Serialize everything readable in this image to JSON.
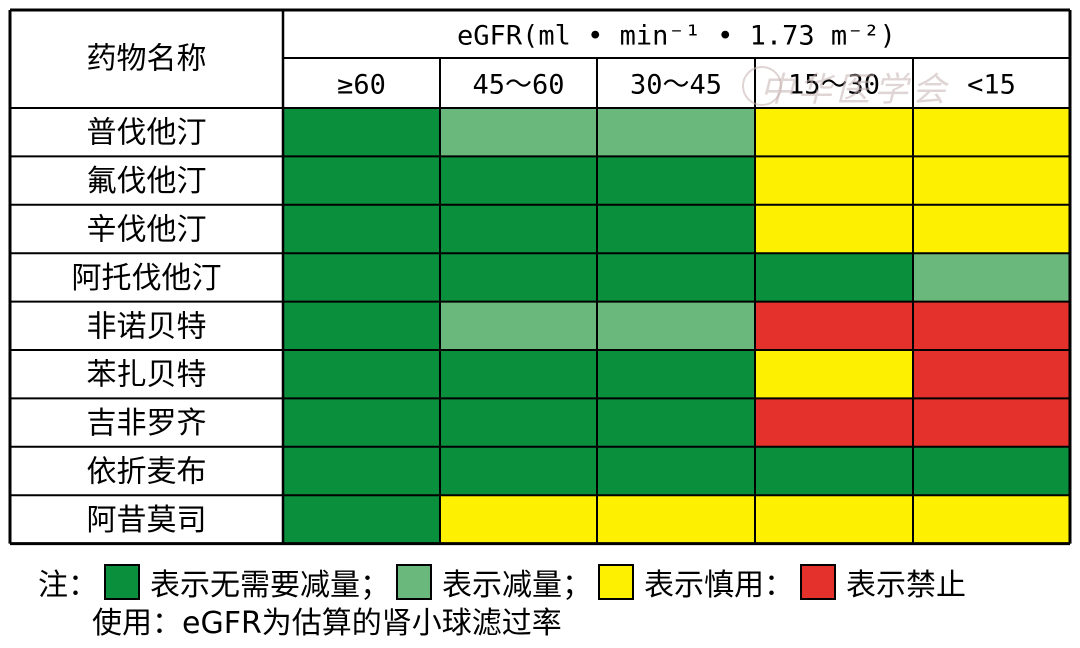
{
  "chart_data": {
    "type": "heatmap",
    "row_header": "药物名称",
    "column_group_label": "eGFR(ml • min⁻¹ • 1.73 m⁻²)",
    "columns": [
      "≥60",
      "45～60",
      "30～45",
      "15～30",
      "<15"
    ],
    "rows": [
      "普伐他汀",
      "氟伐他汀",
      "辛伐他汀",
      "阿托伐他汀",
      "非诺贝特",
      "苯扎贝特",
      "吉非罗齐",
      "依折麦布",
      "阿昔莫司"
    ],
    "categories_legend": {
      "no_reduction": "表示无需要减量",
      "reduce": "表示减量",
      "caution": "表示慎用",
      "forbidden": "表示禁止"
    },
    "colors": {
      "no_reduction": "#0a8f3c",
      "reduce": "#6ab87c",
      "caution": "#fdf000",
      "forbidden": "#e4312b"
    },
    "values": [
      [
        "no_reduction",
        "reduce",
        "reduce",
        "caution",
        "caution"
      ],
      [
        "no_reduction",
        "no_reduction",
        "no_reduction",
        "caution",
        "caution"
      ],
      [
        "no_reduction",
        "no_reduction",
        "no_reduction",
        "caution",
        "caution"
      ],
      [
        "no_reduction",
        "no_reduction",
        "no_reduction",
        "no_reduction",
        "reduce"
      ],
      [
        "no_reduction",
        "reduce",
        "reduce",
        "forbidden",
        "forbidden"
      ],
      [
        "no_reduction",
        "no_reduction",
        "no_reduction",
        "caution",
        "forbidden"
      ],
      [
        "no_reduction",
        "no_reduction",
        "no_reduction",
        "forbidden",
        "forbidden"
      ],
      [
        "no_reduction",
        "no_reduction",
        "no_reduction",
        "no_reduction",
        "no_reduction"
      ],
      [
        "no_reduction",
        "caution",
        "caution",
        "caution",
        "caution"
      ]
    ]
  },
  "legend": {
    "prefix": "注：",
    "sep1": "；",
    "sep2": "；",
    "sep3": "：",
    "note": "使用：eGFR为估算的肾小球滤过率"
  },
  "watermark": "中华医学会"
}
